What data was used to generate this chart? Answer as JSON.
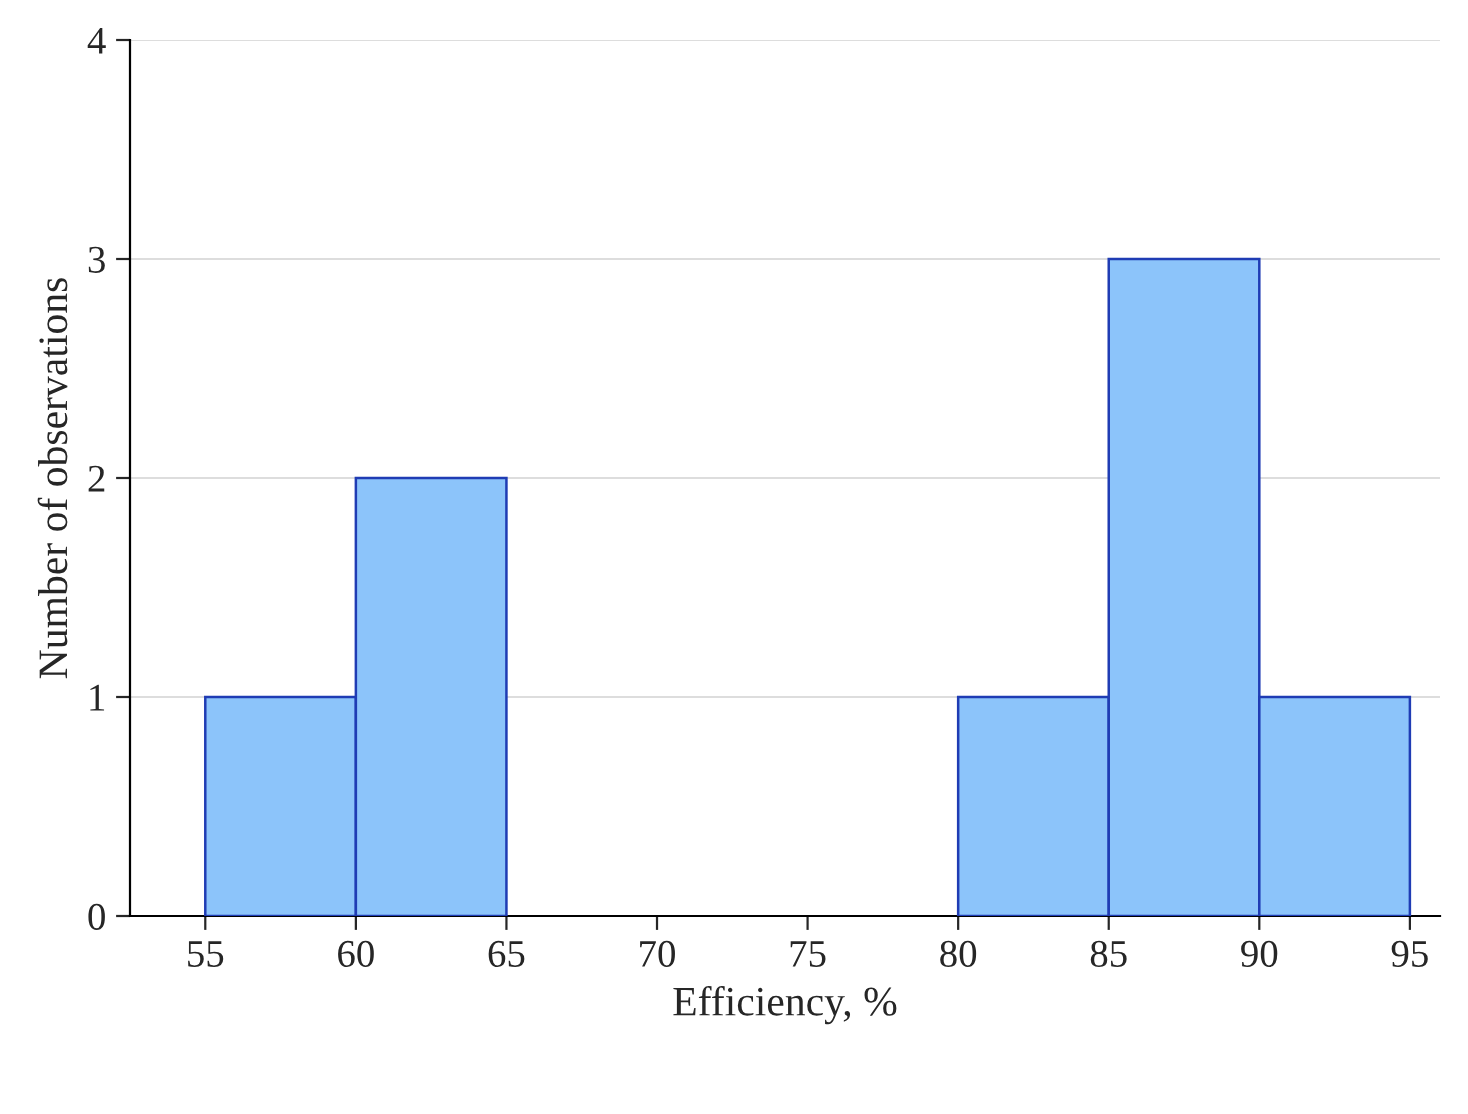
{
  "chart_data": {
    "type": "histogram",
    "xlabel": "Efficiency, %",
    "ylabel": "Number of observations",
    "bins": [
      55,
      60,
      65,
      70,
      75,
      80,
      85,
      90,
      95
    ],
    "values": [
      1,
      2,
      0,
      0,
      0,
      1,
      3,
      1
    ],
    "color": "#8cc4fa",
    "xlim": [
      52.5,
      96
    ],
    "xticks": [
      55,
      60,
      65,
      70,
      75,
      80,
      85,
      90,
      95
    ],
    "ylim": [
      0,
      4
    ],
    "yticks": [
      0,
      1,
      2,
      3,
      4
    ],
    "grid": "y"
  }
}
